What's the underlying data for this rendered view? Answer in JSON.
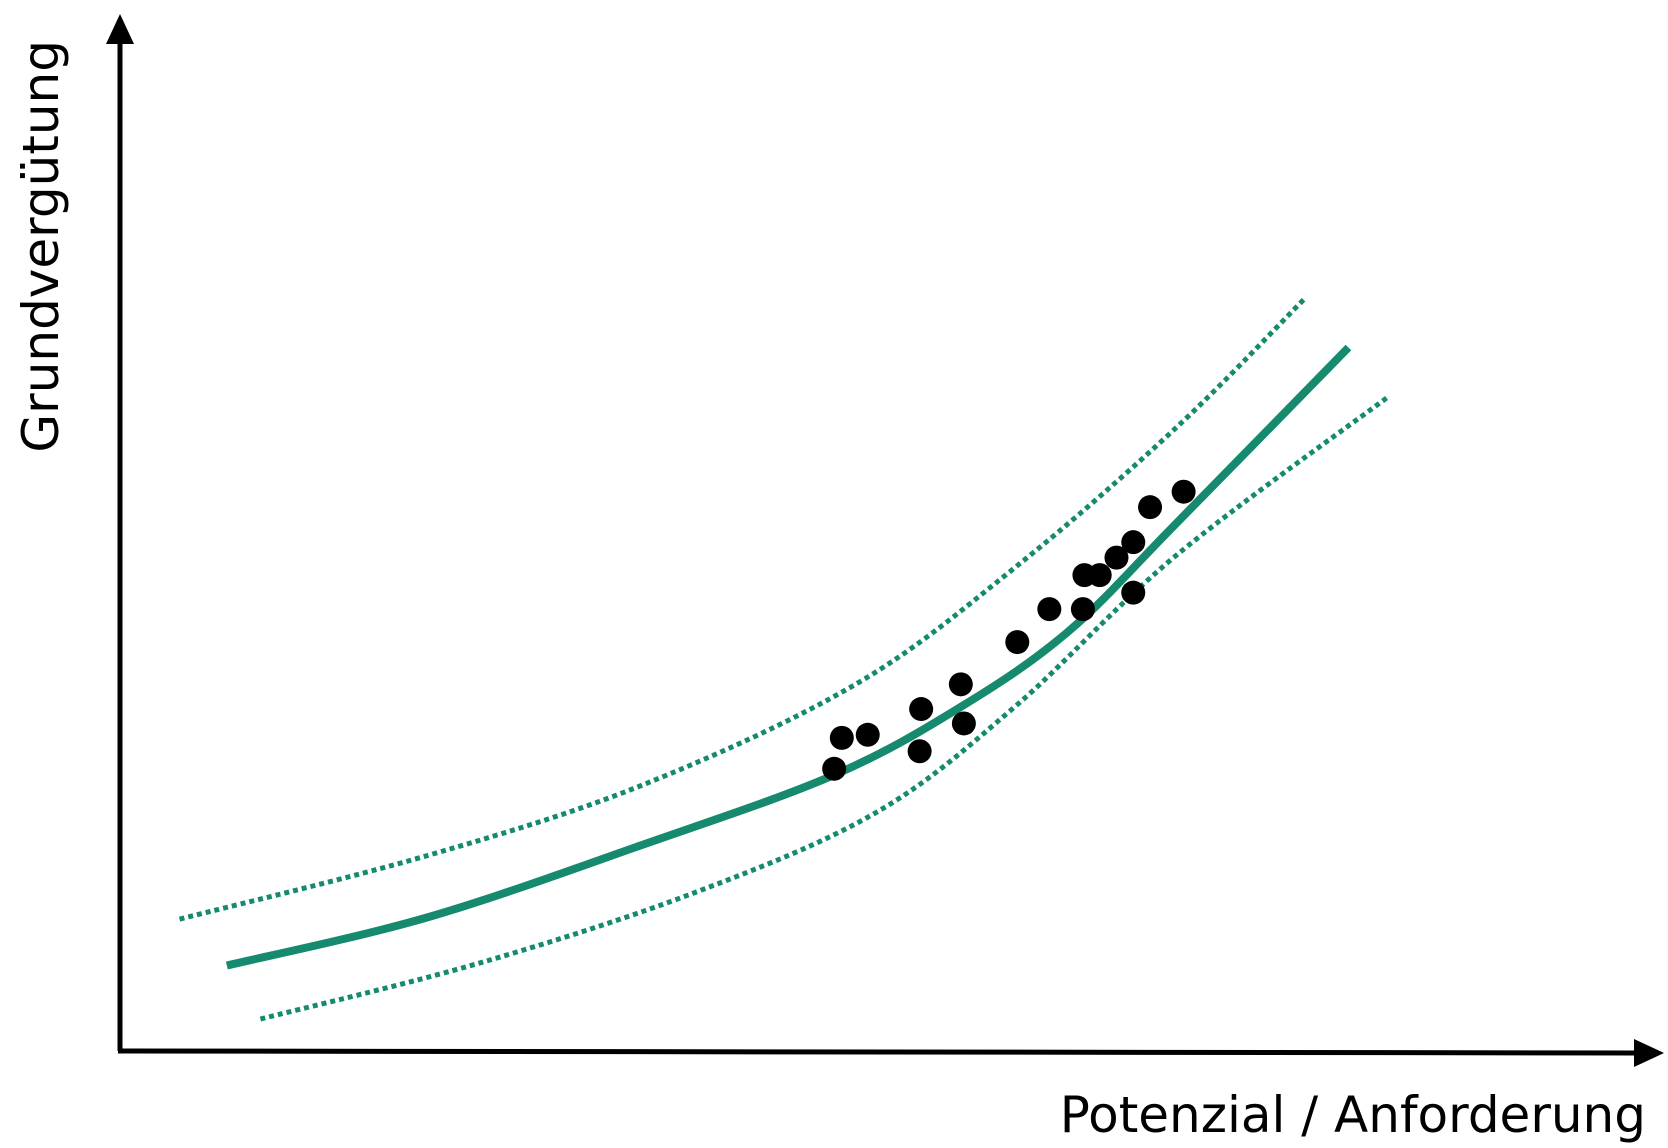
{
  "chart_data": {
    "type": "scatter",
    "x_label": "Potenzial / Anforderung",
    "y_label": "Grundvergütung",
    "xlim": [
      0,
      100
    ],
    "ylim": [
      0,
      100
    ],
    "grid": false,
    "point_color": "#000000",
    "x": [
      46.8,
      47.3,
      49.0,
      52.4,
      52.5,
      55.1,
      55.3,
      58.8,
      60.9,
      63.1,
      63.2,
      64.2,
      65.3,
      66.4,
      66.4,
      67.5,
      69.7
    ],
    "y": [
      27.4,
      30.4,
      30.7,
      29.1,
      33.2,
      35.6,
      31.8,
      39.7,
      42.9,
      42.9,
      46.2,
      46.2,
      47.9,
      49.4,
      44.5,
      52.8,
      54.3
    ],
    "curves": [
      {
        "style": "solid",
        "color": "#168a6e",
        "x": [
          7.0,
          20.2,
          34.2,
          46.8,
          55.2,
          62.2,
          69.2,
          80.5
        ],
        "y": [
          8.3,
          13.0,
          20.0,
          26.8,
          33.5,
          40.8,
          51.2,
          68.3
        ]
      },
      {
        "style": "dotted",
        "color": "#168a6e",
        "x": [
          3.9,
          20.2,
          34.2,
          48.2,
          58.7,
          69.2,
          77.6
        ],
        "y": [
          12.8,
          19.0,
          25.8,
          35.6,
          47.0,
          60.5,
          73.0
        ]
      },
      {
        "style": "dotted",
        "color": "#168a6e",
        "x": [
          9.2,
          23.7,
          37.7,
          49.6,
          58.7,
          69.2,
          83.0
        ],
        "y": [
          3.1,
          8.6,
          15.4,
          23.2,
          33.5,
          48.1,
          63.4
        ]
      }
    ]
  }
}
